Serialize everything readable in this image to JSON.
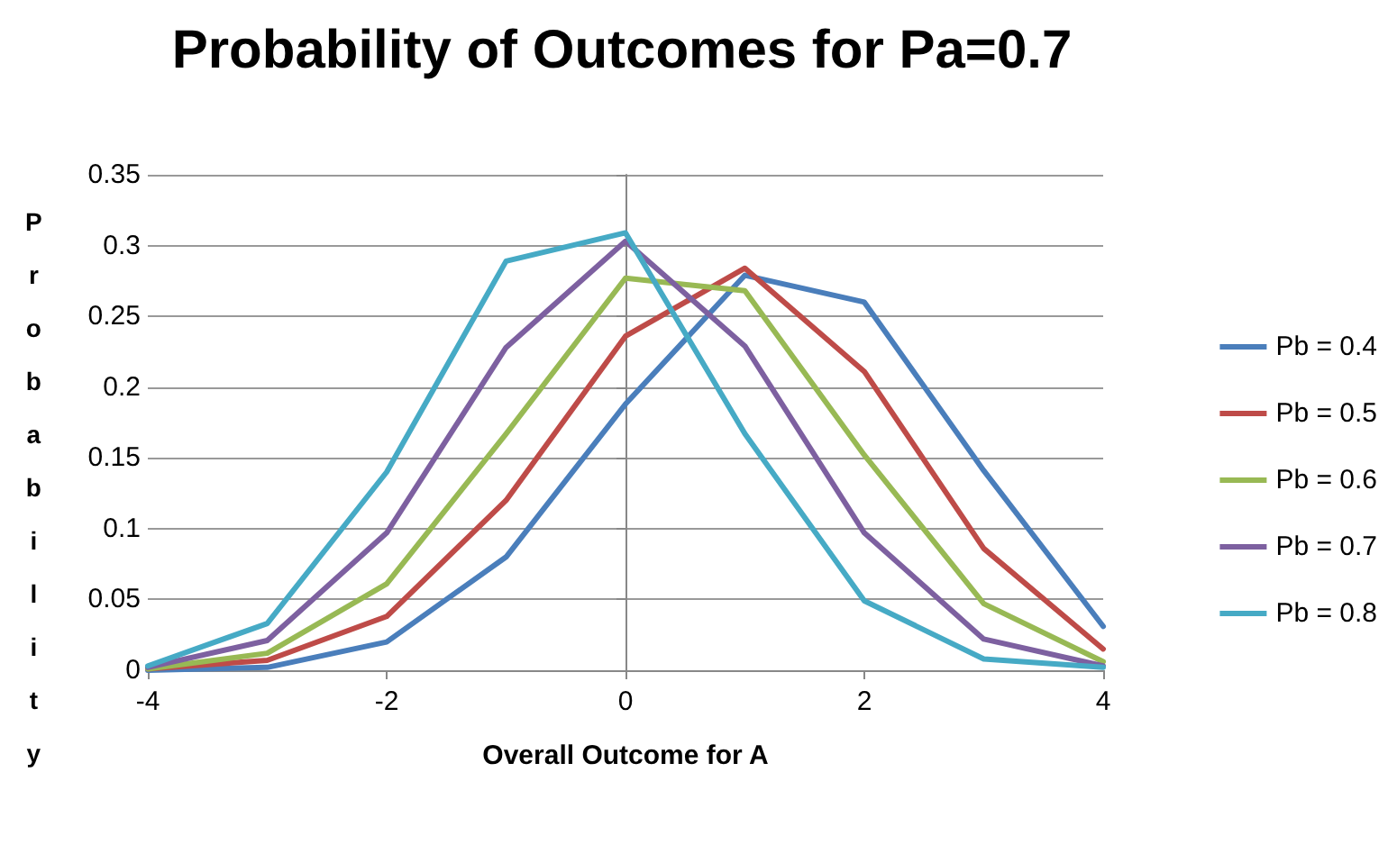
{
  "chart_data": {
    "type": "line",
    "title": "Probability of Outcomes for Pa=0.7",
    "xlabel": "Overall Outcome for A",
    "ylabel": "Probability",
    "x": [
      -4,
      -3,
      -2,
      -1,
      0,
      1,
      2,
      3,
      4
    ],
    "series": [
      {
        "name": "Pb = 0.4",
        "color": "#4a7ebb",
        "values": [
          0,
          0.002,
          0.02,
          0.08,
          0.188,
          0.279,
          0.26,
          0.141,
          0.031
        ]
      },
      {
        "name": "Pb = 0.5",
        "color": "#be4b48",
        "values": [
          0.001,
          0.007,
          0.038,
          0.12,
          0.236,
          0.284,
          0.211,
          0.086,
          0.015
        ]
      },
      {
        "name": "Pb = 0.6",
        "color": "#98b954",
        "values": [
          0.001,
          0.012,
          0.061,
          0.167,
          0.277,
          0.268,
          0.152,
          0.047,
          0.006
        ]
      },
      {
        "name": "Pb = 0.7",
        "color": "#7d60a0",
        "values": [
          0.002,
          0.021,
          0.097,
          0.228,
          0.303,
          0.229,
          0.097,
          0.022,
          0.003
        ]
      },
      {
        "name": "Pb = 0.8",
        "color": "#46aac5",
        "values": [
          0.003,
          0.033,
          0.14,
          0.289,
          0.309,
          0.167,
          0.049,
          0.008,
          0.002
        ]
      }
    ],
    "xlim": [
      -4,
      4
    ],
    "xticks": [
      -4,
      -2,
      0,
      2,
      4
    ],
    "ylim": [
      0,
      0.35
    ],
    "yticks": [
      0,
      0.05,
      0.1,
      0.15,
      0.2,
      0.25,
      0.3,
      0.35
    ],
    "grid": "y",
    "legend": "right",
    "marker": "none",
    "line_style": "solid"
  }
}
